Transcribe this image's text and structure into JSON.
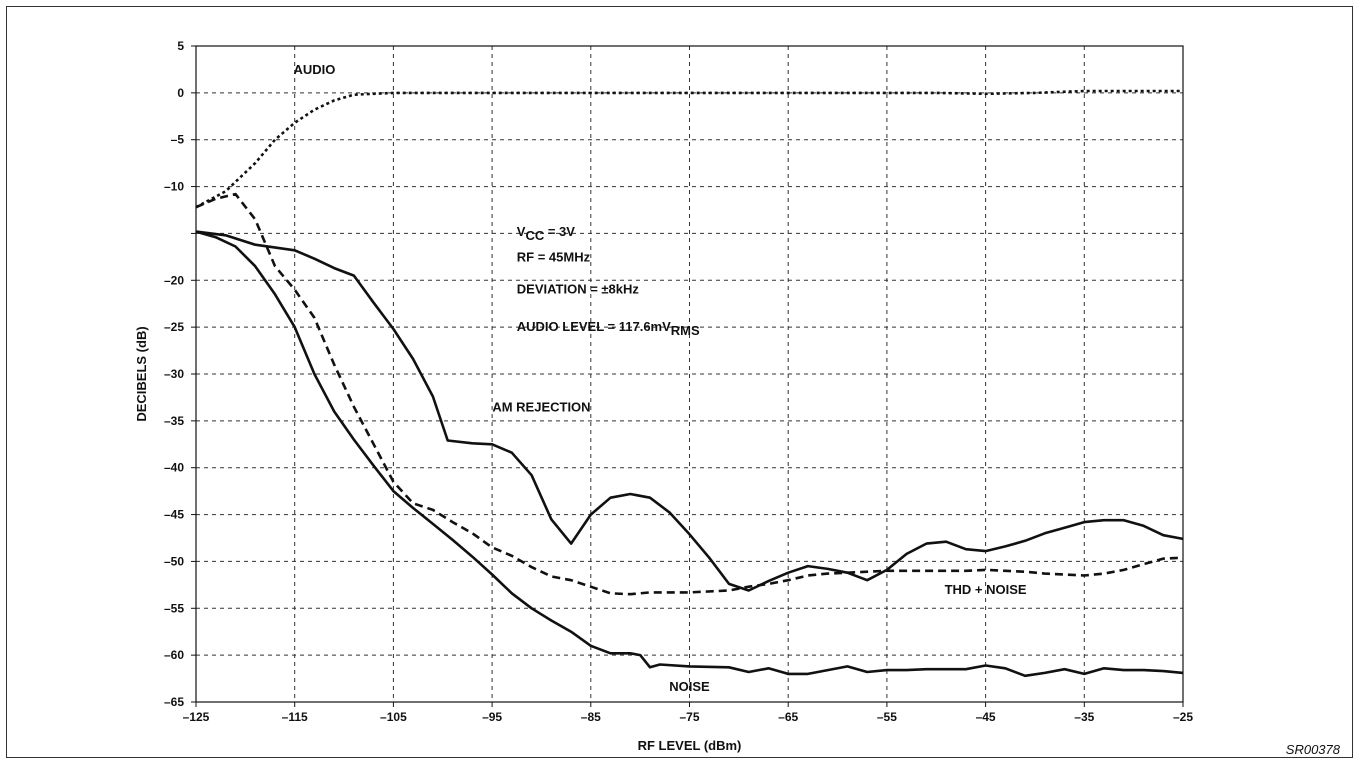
{
  "chart_data": {
    "type": "line",
    "xlabel": "RF LEVEL (dBm)",
    "ylabel": "DECIBELS (dB)",
    "xlim": [
      -125,
      -25
    ],
    "ylim": [
      -65,
      5
    ],
    "x_ticks": [
      -125,
      -115,
      -105,
      -95,
      -85,
      -75,
      -65,
      -55,
      -45,
      -35,
      -25
    ],
    "y_ticks": [
      5,
      0,
      -5,
      -10,
      -15,
      -20,
      -25,
      -30,
      -35,
      -40,
      -45,
      -50,
      -55,
      -60,
      -65
    ],
    "y_tick_labels": [
      "5",
      "0",
      "–5",
      "–10",
      "",
      "–20",
      "–25",
      "–30",
      "–35",
      "–40",
      "–45",
      "–50",
      "–55",
      "–60",
      "–65"
    ],
    "x_tick_labels": [
      "–125",
      "–115",
      "–105",
      "–95",
      "–85",
      "–75",
      "–65",
      "–55",
      "–45",
      "–35",
      "–25"
    ],
    "grid": true,
    "series": [
      {
        "name": "AUDIO",
        "style": "dotted",
        "label_at": [
          -113,
          2
        ],
        "x": [
          -125,
          -122,
          -119,
          -117,
          -115,
          -113,
          -111,
          -109,
          -107,
          -105,
          -100,
          -90,
          -80,
          -70,
          -60,
          -50,
          -45,
          -40,
          -35,
          -30,
          -25
        ],
        "y": [
          -12.2,
          -10.5,
          -7.5,
          -5.0,
          -3.2,
          -1.8,
          -0.8,
          -0.2,
          -0.1,
          0,
          0,
          0,
          0,
          0,
          0,
          0,
          -0.1,
          0,
          0.2,
          0.2,
          0.2
        ]
      },
      {
        "name": "AM REJECTION",
        "style": "solid",
        "label_at": [
          -90,
          -34
        ],
        "x": [
          -125,
          -122,
          -119,
          -115,
          -113,
          -111,
          -109,
          -107,
          -105,
          -103,
          -101,
          -99.5,
          -97,
          -95,
          -93,
          -91,
          -89,
          -87,
          -85,
          -83,
          -81,
          -79,
          -77,
          -75,
          -73,
          -71,
          -69,
          -67,
          -65,
          -63,
          -61,
          -59,
          -57,
          -55,
          -53,
          -51,
          -49,
          -47,
          -45,
          -43,
          -41,
          -39,
          -37,
          -35,
          -33,
          -31,
          -29,
          -27,
          -25
        ],
        "y": [
          -14.8,
          -15.2,
          -16.2,
          -16.8,
          -17.7,
          -18.7,
          -19.5,
          -22.4,
          -25.2,
          -28.4,
          -32.4,
          -37.1,
          -37.4,
          -37.5,
          -38.4,
          -40.8,
          -45.5,
          -48.1,
          -45.0,
          -43.2,
          -42.8,
          -43.2,
          -44.8,
          -47.1,
          -49.6,
          -52.4,
          -53.1,
          -52.1,
          -51.2,
          -50.5,
          -50.8,
          -51.2,
          -52.0,
          -50.9,
          -49.2,
          -48.1,
          -47.9,
          -48.7,
          -48.9,
          -48.4,
          -47.8,
          -47.0,
          -46.4,
          -45.8,
          -45.6,
          -45.6,
          -46.2,
          -47.2,
          -47.6
        ]
      },
      {
        "name": "THD + NOISE",
        "style": "dashed",
        "label_at": [
          -45,
          -53.5
        ],
        "x": [
          -125,
          -123,
          -121,
          -119,
          -117,
          -115,
          -113,
          -111,
          -109,
          -107,
          -105,
          -103,
          -101,
          -99,
          -97,
          -95,
          -93,
          -91,
          -89,
          -87,
          -85,
          -83,
          -81,
          -79,
          -75,
          -71,
          -69,
          -67,
          -65,
          -63,
          -61,
          -59,
          -57,
          -55,
          -51,
          -47,
          -45,
          -43,
          -41,
          -39,
          -37,
          -35,
          -33,
          -31,
          -29,
          -27,
          -25
        ],
        "y": [
          -12.2,
          -11.3,
          -10.8,
          -13.5,
          -18.5,
          -21.0,
          -24.0,
          -29.0,
          -33.5,
          -37.5,
          -41.5,
          -43.8,
          -44.5,
          -45.8,
          -47.0,
          -48.5,
          -49.4,
          -50.6,
          -51.6,
          -52.0,
          -52.7,
          -53.4,
          -53.5,
          -53.3,
          -53.3,
          -53.1,
          -52.7,
          -52.4,
          -52.0,
          -51.5,
          -51.3,
          -51.2,
          -51.1,
          -51.0,
          -51.0,
          -51.0,
          -50.9,
          -51.0,
          -51.1,
          -51.3,
          -51.4,
          -51.5,
          -51.3,
          -50.9,
          -50.3,
          -49.7,
          -49.6
        ]
      },
      {
        "name": "NOISE",
        "style": "solid-dashdot",
        "label_at": [
          -75,
          -63.8
        ],
        "x": [
          -125,
          -123,
          -121,
          -119,
          -117,
          -115,
          -113,
          -111,
          -109,
          -107,
          -105,
          -103,
          -101,
          -99,
          -97,
          -95,
          -93,
          -91,
          -89,
          -87,
          -85,
          -83,
          -81,
          -80,
          -79,
          -78,
          -75,
          -71,
          -69,
          -67,
          -65,
          -63,
          -61,
          -59,
          -57,
          -55,
          -53,
          -51,
          -49,
          -47,
          -45,
          -43,
          -41,
          -39,
          -37,
          -35,
          -33,
          -31,
          -29,
          -27,
          -25
        ],
        "y": [
          -14.8,
          -15.4,
          -16.4,
          -18.5,
          -21.5,
          -25.0,
          -30.0,
          -34.0,
          -37.0,
          -39.8,
          -42.5,
          -44.3,
          -46.0,
          -47.7,
          -49.5,
          -51.4,
          -53.4,
          -55.0,
          -56.3,
          -57.5,
          -59.0,
          -59.8,
          -59.8,
          -60.0,
          -61.3,
          -61.0,
          -61.2,
          -61.3,
          -61.8,
          -61.4,
          -62.0,
          -62.0,
          -61.6,
          -61.2,
          -61.8,
          -61.6,
          -61.6,
          -61.5,
          -61.5,
          -61.5,
          -61.1,
          -61.4,
          -62.2,
          -61.9,
          -61.5,
          -62.0,
          -61.4,
          -61.6,
          -61.6,
          -61.7,
          -61.9
        ]
      }
    ],
    "annotations": {
      "vcc_prefix": "V",
      "vcc_sub": "CC",
      "vcc_suffix": " = 3V",
      "rf": "RF = 45MHz",
      "deviation": "DEVIATION = ±8kHz",
      "audio_level_prefix": "AUDIO LEVEL = 117.6mV",
      "audio_level_sub": "RMS"
    },
    "figure_code": "SR00378"
  }
}
